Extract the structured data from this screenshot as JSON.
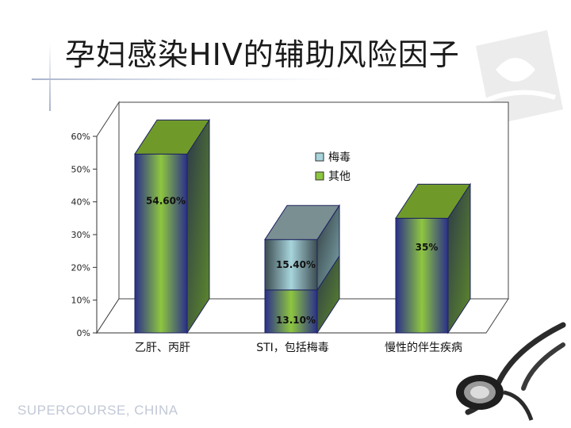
{
  "slide": {
    "title": "孕妇感染HIV的辅助风险因子",
    "footer": "SUPERCOURSE, CHINA"
  },
  "colors": {
    "syphilis_series": "#a8d4dc",
    "other_series": "#8ec63f",
    "bar_edge": "#2a2f8a",
    "text": "#1a1a1a"
  },
  "chart_data": {
    "type": "bar",
    "stacked": true,
    "three_d": true,
    "categories": [
      "乙肝、丙肝",
      "STI，包括梅毒",
      "慢性的伴生疾病"
    ],
    "series": [
      {
        "name": "其他",
        "values": [
          54.6,
          13.1,
          35
        ],
        "labels": [
          "54.60%",
          "13.10%",
          "35%"
        ]
      },
      {
        "name": "梅毒",
        "values": [
          0,
          15.4,
          0
        ],
        "labels": [
          "",
          "15.40%",
          ""
        ]
      }
    ],
    "y_ticks": [
      "0%",
      "10%",
      "20%",
      "30%",
      "40%",
      "50%",
      "60%"
    ],
    "ylim": [
      0,
      60
    ],
    "legend_position": "upper-center"
  }
}
